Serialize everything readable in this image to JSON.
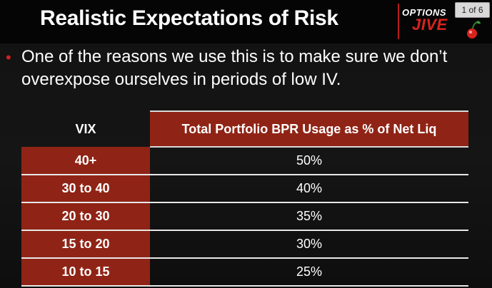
{
  "header": {
    "title": "Realistic Expectations of Risk",
    "logo_top": "OPTIONS",
    "logo_bottom": "JIVE",
    "page_counter": "1 of 6"
  },
  "bullet": {
    "marker": "•",
    "text": "One of the reasons we use this is to make sure we don’t overexpose ourselves in periods of low IV."
  },
  "table": {
    "headers": {
      "vix": "VIX",
      "bpr": "Total Portfolio BPR Usage as % of Net Liq"
    },
    "rows": [
      {
        "vix": "40+",
        "bpr": "50%"
      },
      {
        "vix": "30 to 40",
        "bpr": "40%"
      },
      {
        "vix": "20 to 30",
        "bpr": "35%"
      },
      {
        "vix": "15 to 20",
        "bpr": "30%"
      },
      {
        "vix": "10 to 15",
        "bpr": "25%"
      }
    ]
  },
  "colors": {
    "accent_red": "#8f2416",
    "logo_red": "#d8231f",
    "background": "#121212"
  },
  "icons": [
    "cherry-icon"
  ]
}
